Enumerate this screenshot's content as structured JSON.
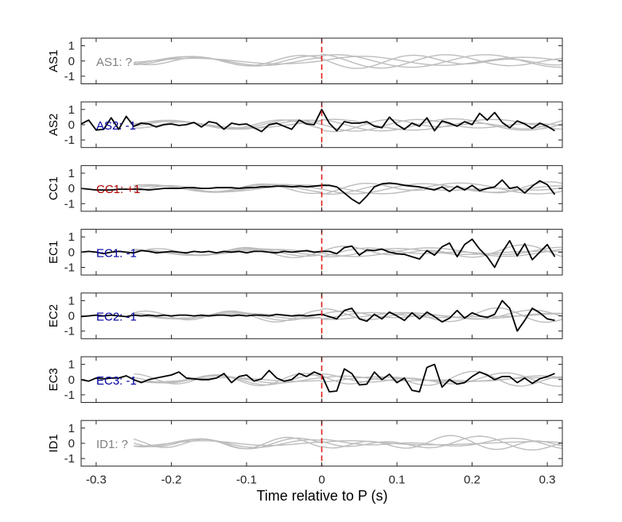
{
  "figure": {
    "xlabel": "Time relative to P (s)"
  },
  "colors": {
    "ref_line": "#e0201c",
    "waveform": "#000000",
    "comparison": "#bdbdbd",
    "label_unknown": "#808080",
    "label_negative": "#0000a0",
    "label_positive": "#b00000"
  },
  "chart_data": {
    "type": "line",
    "xlim": [
      -0.32,
      0.32
    ],
    "ylim": [
      -1.5,
      1.5
    ],
    "x_ticks": [
      -0.3,
      -0.2,
      -0.1,
      0,
      0.1,
      0.2,
      0.3
    ],
    "x_tick_labels": [
      "-0.3",
      "-0.2",
      "-0.1",
      "0",
      "0.1",
      "0.2",
      "0.3"
    ],
    "y_ticks": [
      1,
      0,
      -1
    ],
    "y_tick_labels": [
      "1",
      "0",
      "-1"
    ],
    "reference_line_x": 0,
    "x": [
      -0.32,
      -0.31,
      -0.3,
      -0.29,
      -0.28,
      -0.27,
      -0.26,
      -0.25,
      -0.24,
      -0.23,
      -0.22,
      -0.21,
      -0.2,
      -0.19,
      -0.18,
      -0.17,
      -0.16,
      -0.15,
      -0.14,
      -0.13,
      -0.12,
      -0.11,
      -0.1,
      -0.09,
      -0.08,
      -0.07,
      -0.06,
      -0.05,
      -0.04,
      -0.03,
      -0.02,
      -0.01,
      0.0,
      0.01,
      0.02,
      0.03,
      0.04,
      0.05,
      0.06,
      0.07,
      0.08,
      0.09,
      0.1,
      0.11,
      0.12,
      0.13,
      0.14,
      0.15,
      0.16,
      0.17,
      0.18,
      0.19,
      0.2,
      0.21,
      0.22,
      0.23,
      0.24,
      0.25,
      0.26,
      0.27,
      0.28,
      0.29,
      0.3,
      0.31
    ],
    "panels": [
      {
        "station": "AS1",
        "label": "AS1: ?",
        "polarity": "unknown",
        "values": null
      },
      {
        "station": "AS2",
        "label": "AS2: -1",
        "polarity": "negative",
        "values": [
          0.05,
          0.3,
          -0.35,
          -0.3,
          0.45,
          -0.3,
          0.55,
          -0.1,
          0.1,
          0.05,
          -0.15,
          0.0,
          0.05,
          -0.05,
          0.0,
          0.15,
          -0.15,
          0.2,
          0.1,
          -0.3,
          0.1,
          0.0,
          0.05,
          -0.2,
          -0.45,
          0.0,
          0.1,
          -0.1,
          -0.3,
          0.3,
          0.05,
          0.0,
          1.0,
          0.1,
          -0.4,
          0.2,
          0.1,
          0.1,
          0.2,
          -0.1,
          -0.2,
          0.5,
          0.0,
          -0.3,
          0.1,
          -0.1,
          0.45,
          -0.4,
          0.25,
          0.1,
          -0.1,
          0.2,
          0.0,
          0.75,
          0.3,
          0.8,
          0.15,
          -0.2,
          0.25,
          0.05,
          -0.25,
          0.1,
          -0.1,
          -0.4
        ]
      },
      {
        "station": "CC1",
        "label": "CC1: +1",
        "polarity": "positive",
        "values": [
          0.0,
          -0.05,
          -0.1,
          -0.1,
          -0.1,
          -0.05,
          -0.05,
          -0.05,
          -0.05,
          -0.1,
          -0.05,
          0.0,
          0.0,
          0.0,
          0.05,
          0.05,
          0.0,
          0.0,
          0.05,
          0.05,
          0.05,
          0.0,
          0.05,
          0.05,
          0.1,
          0.1,
          0.15,
          0.15,
          0.1,
          0.15,
          0.1,
          0.15,
          0.2,
          0.2,
          0.1,
          -0.3,
          -0.7,
          -1.0,
          -0.5,
          0.1,
          0.3,
          0.35,
          0.3,
          0.2,
          0.15,
          0.1,
          0.0,
          -0.1,
          0.1,
          -0.2,
          0.15,
          -0.1,
          0.2,
          -0.15,
          0.0,
          0.1,
          0.55,
          0.0,
          0.1,
          -0.3,
          0.15,
          0.5,
          0.25,
          -0.4
        ]
      },
      {
        "station": "EC1",
        "label": "EC1: -1",
        "polarity": "negative",
        "values": [
          0.0,
          0.05,
          0.0,
          -0.1,
          0.0,
          0.05,
          0.0,
          -0.05,
          0.1,
          0.05,
          -0.05,
          0.0,
          0.05,
          0.0,
          -0.05,
          0.05,
          0.0,
          0.05,
          -0.05,
          0.05,
          0.0,
          0.05,
          -0.05,
          0.05,
          0.05,
          0.0,
          -0.05,
          0.05,
          0.0,
          0.05,
          0.1,
          0.0,
          0.05,
          0.05,
          -0.1,
          0.3,
          0.4,
          -0.2,
          0.15,
          0.1,
          0.2,
          0.0,
          -0.1,
          -0.15,
          -0.3,
          -0.45,
          0.1,
          -0.2,
          0.35,
          0.6,
          -0.3,
          0.5,
          0.85,
          0.2,
          -0.3,
          -1.0,
          0.0,
          0.75,
          -0.25,
          0.55,
          -0.5,
          0.0,
          0.5,
          -0.3
        ]
      },
      {
        "station": "EC2",
        "label": "EC2: -1",
        "polarity": "negative",
        "values": [
          -0.05,
          0.0,
          0.05,
          0.0,
          0.05,
          0.0,
          -0.05,
          0.05,
          0.0,
          0.05,
          0.0,
          0.05,
          0.0,
          0.05,
          0.05,
          0.0,
          0.05,
          0.0,
          0.05,
          0.05,
          0.0,
          0.05,
          0.0,
          0.05,
          0.05,
          0.0,
          0.1,
          0.05,
          0.0,
          0.05,
          0.0,
          0.05,
          0.1,
          -0.05,
          -0.2,
          0.35,
          0.5,
          -0.2,
          -0.35,
          0.1,
          -0.2,
          0.25,
          0.0,
          -0.3,
          0.2,
          -0.2,
          0.25,
          -0.05,
          -0.4,
          -0.15,
          0.35,
          -0.15,
          0.2,
          0.0,
          -0.1,
          0.1,
          1.0,
          0.5,
          -1.0,
          -0.3,
          0.5,
          0.2,
          -0.2,
          -0.3
        ]
      },
      {
        "station": "EC3",
        "label": "EC3: -1",
        "polarity": "negative",
        "values": [
          0.0,
          -0.1,
          0.1,
          0.05,
          0.1,
          0.1,
          0.25,
          0.0,
          -0.2,
          0.0,
          0.1,
          0.2,
          0.3,
          0.5,
          0.1,
          0.05,
          0.0,
          0.0,
          0.1,
          0.4,
          -0.2,
          0.2,
          0.3,
          -0.1,
          0.05,
          0.6,
          0.1,
          -0.1,
          0.0,
          0.4,
          0.2,
          0.5,
          0.3,
          -0.8,
          -0.75,
          0.7,
          0.4,
          -0.35,
          -0.3,
          0.5,
          0.0,
          0.35,
          -0.2,
          0.1,
          -0.7,
          -0.8,
          0.8,
          1.0,
          -0.5,
          0.0,
          -0.3,
          -0.2,
          0.2,
          0.5,
          0.3,
          0.0,
          0.2,
          0.2,
          -0.2,
          0.1,
          -0.25,
          0.05,
          0.2,
          0.4
        ]
      },
      {
        "station": "ID1",
        "label": "ID1: ?",
        "polarity": "unknown",
        "values": null
      }
    ]
  }
}
